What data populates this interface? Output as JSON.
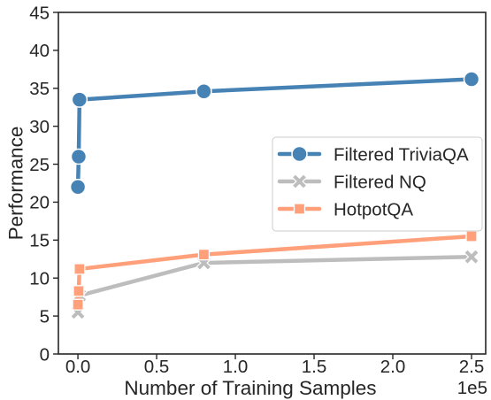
{
  "chart_data": {
    "type": "line",
    "xlabel": "Number of Training Samples",
    "ylabel": "Performance",
    "x_offset_label": "1e5",
    "xlim": [
      -12400,
      259000
    ],
    "ylim": [
      0,
      45
    ],
    "xticks": [
      0,
      50000,
      100000,
      150000,
      200000,
      250000
    ],
    "xtick_labels": [
      "0.0",
      "0.5",
      "1.0",
      "1.5",
      "2.0",
      "2.5"
    ],
    "yticks": [
      0,
      5,
      10,
      15,
      20,
      25,
      30,
      35,
      40,
      45
    ],
    "ytick_labels": [
      "0",
      "5",
      "10",
      "15",
      "20",
      "25",
      "30",
      "35",
      "40",
      "45"
    ],
    "grid": false,
    "legend_position": "center right",
    "series": [
      {
        "name": "Filtered TriviaQA",
        "color": "#4682b4",
        "marker": "circle",
        "x": [
          0,
          500,
          1000,
          80000,
          250000
        ],
        "y": [
          22.0,
          26.0,
          33.5,
          34.6,
          36.2
        ]
      },
      {
        "name": "Filtered NQ",
        "color": "#bdbdbd",
        "marker": "x",
        "x": [
          0,
          1000,
          80000,
          250000
        ],
        "y": [
          5.5,
          7.7,
          12.0,
          12.8
        ]
      },
      {
        "name": "HotpotQA",
        "color": "#ffa07a",
        "marker": "square",
        "x": [
          0,
          500,
          1000,
          80000,
          250000
        ],
        "y": [
          6.5,
          8.3,
          11.2,
          13.1,
          15.5
        ]
      }
    ]
  }
}
